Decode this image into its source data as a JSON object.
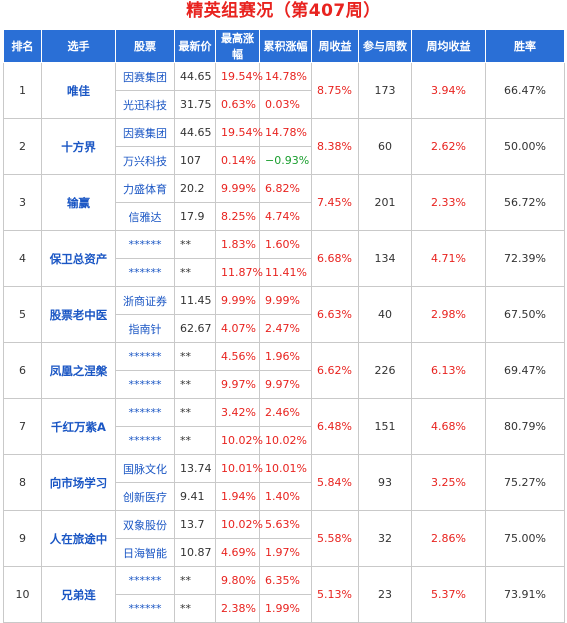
{
  "title": "精英组赛况（第407周）",
  "headers": [
    "排名",
    "选手",
    "股票",
    "最新价",
    "最高涨幅",
    "累积涨幅",
    "周收益",
    "参与周数",
    "周均收益",
    "胜率"
  ],
  "rows": [
    {
      "rank": "1",
      "player": "唯佳",
      "week_return": "8.75%",
      "weeks": "173",
      "avg_return": "3.94%",
      "win_rate": "66.47%",
      "stocks": [
        {
          "name": "因赛集团",
          "price": "44.65",
          "max_gain": "19.54%",
          "cum_gain": "14.78%",
          "cum_color": "red"
        },
        {
          "name": "光迅科技",
          "price": "31.75",
          "max_gain": "0.63%",
          "cum_gain": "0.03%",
          "cum_color": "red"
        }
      ]
    },
    {
      "rank": "2",
      "player": "十方界",
      "week_return": "8.38%",
      "weeks": "60",
      "avg_return": "2.62%",
      "win_rate": "50.00%",
      "stocks": [
        {
          "name": "因赛集团",
          "price": "44.65",
          "max_gain": "19.54%",
          "cum_gain": "14.78%",
          "cum_color": "red"
        },
        {
          "name": "万兴科技",
          "price": "107",
          "max_gain": "0.14%",
          "cum_gain": "−0.93%",
          "cum_color": "green"
        }
      ]
    },
    {
      "rank": "3",
      "player": "输赢",
      "week_return": "7.45%",
      "weeks": "201",
      "avg_return": "2.33%",
      "win_rate": "56.72%",
      "stocks": [
        {
          "name": "力盛体育",
          "price": "20.2",
          "max_gain": "9.99%",
          "cum_gain": "6.82%",
          "cum_color": "red"
        },
        {
          "name": "信雅达",
          "price": "17.9",
          "max_gain": "8.25%",
          "cum_gain": "4.74%",
          "cum_color": "red"
        }
      ]
    },
    {
      "rank": "4",
      "player": "保卫总资产",
      "week_return": "6.68%",
      "weeks": "134",
      "avg_return": "4.71%",
      "win_rate": "72.39%",
      "stocks": [
        {
          "name": "******",
          "price": "**",
          "max_gain": "1.83%",
          "cum_gain": "1.60%",
          "cum_color": "red"
        },
        {
          "name": "******",
          "price": "**",
          "max_gain": "11.87%",
          "cum_gain": "11.41%",
          "cum_color": "red"
        }
      ]
    },
    {
      "rank": "5",
      "player": "股票老中医",
      "week_return": "6.63%",
      "weeks": "40",
      "avg_return": "2.98%",
      "win_rate": "67.50%",
      "stocks": [
        {
          "name": "浙商证券",
          "price": "11.45",
          "max_gain": "9.99%",
          "cum_gain": "9.99%",
          "cum_color": "red"
        },
        {
          "name": "指南针",
          "price": "62.67",
          "max_gain": "4.07%",
          "cum_gain": "2.47%",
          "cum_color": "red"
        }
      ]
    },
    {
      "rank": "6",
      "player": "凤凰之涅槃",
      "week_return": "6.62%",
      "weeks": "226",
      "avg_return": "6.13%",
      "win_rate": "69.47%",
      "stocks": [
        {
          "name": "******",
          "price": "**",
          "max_gain": "4.56%",
          "cum_gain": "1.96%",
          "cum_color": "red"
        },
        {
          "name": "******",
          "price": "**",
          "max_gain": "9.97%",
          "cum_gain": "9.97%",
          "cum_color": "red"
        }
      ]
    },
    {
      "rank": "7",
      "player": "千红万紫A",
      "week_return": "6.48%",
      "weeks": "151",
      "avg_return": "4.68%",
      "win_rate": "80.79%",
      "stocks": [
        {
          "name": "******",
          "price": "**",
          "max_gain": "3.42%",
          "cum_gain": "2.46%",
          "cum_color": "red"
        },
        {
          "name": "******",
          "price": "**",
          "max_gain": "10.02%",
          "cum_gain": "10.02%",
          "cum_color": "red"
        }
      ]
    },
    {
      "rank": "8",
      "player": "向市场学习",
      "week_return": "5.84%",
      "weeks": "93",
      "avg_return": "3.25%",
      "win_rate": "75.27%",
      "stocks": [
        {
          "name": "国脉文化",
          "price": "13.74",
          "max_gain": "10.01%",
          "cum_gain": "10.01%",
          "cum_color": "red"
        },
        {
          "name": "创新医疗",
          "price": "9.41",
          "max_gain": "1.94%",
          "cum_gain": "1.40%",
          "cum_color": "red"
        }
      ]
    },
    {
      "rank": "9",
      "player": "人在旅途中",
      "week_return": "5.58%",
      "weeks": "32",
      "avg_return": "2.86%",
      "win_rate": "75.00%",
      "stocks": [
        {
          "name": "双象股份",
          "price": "13.7",
          "max_gain": "10.02%",
          "cum_gain": "5.63%",
          "cum_color": "red"
        },
        {
          "name": "日海智能",
          "price": "10.87",
          "max_gain": "4.69%",
          "cum_gain": "1.97%",
          "cum_color": "red"
        }
      ]
    },
    {
      "rank": "10",
      "player": "兄弟连",
      "week_return": "5.13%",
      "weeks": "23",
      "avg_return": "5.37%",
      "win_rate": "73.91%",
      "stocks": [
        {
          "name": "******",
          "price": "**",
          "max_gain": "9.80%",
          "cum_gain": "6.35%",
          "cum_color": "red"
        },
        {
          "name": "******",
          "price": "**",
          "max_gain": "2.38%",
          "cum_gain": "1.99%",
          "cum_color": "red"
        }
      ]
    }
  ]
}
